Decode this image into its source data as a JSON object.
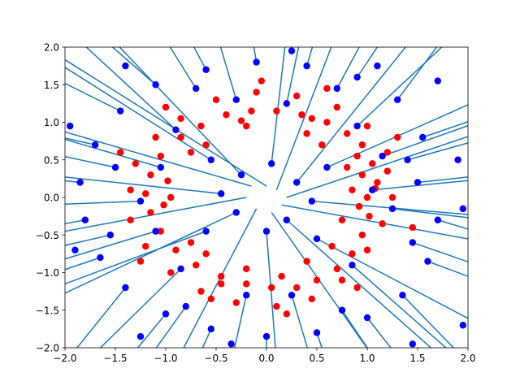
{
  "chart_data": {
    "type": "scatter",
    "title": "",
    "xlabel": "",
    "ylabel": "",
    "xlim": [
      -2.0,
      2.0
    ],
    "ylim": [
      -2.0,
      2.0
    ],
    "x_ticks": [
      "−2.0",
      "−1.5",
      "−1.0",
      "−0.5",
      "0.0",
      "0.5",
      "1.0",
      "1.5",
      "2.0"
    ],
    "y_ticks": [
      "−2.0",
      "−1.5",
      "−1.0",
      "−0.5",
      "0.0",
      "0.5",
      "1.0",
      "1.5",
      "2.0"
    ],
    "grid": false,
    "legend": "none",
    "colors": {
      "class_a": "#ff0000",
      "class_b": "#0000ff",
      "segments": "#1f77b4"
    },
    "series": [
      {
        "description": "inner ring points (red)",
        "color": "#ff0000",
        "points": [
          [
            0.95,
            0.3
          ],
          [
            1.05,
            0.45
          ],
          [
            1.1,
            0.2
          ],
          [
            0.9,
            0.55
          ],
          [
            1.0,
            0.0
          ],
          [
            1.02,
            -0.25
          ],
          [
            0.95,
            -0.5
          ],
          [
            0.85,
            -0.75
          ],
          [
            0.7,
            -0.95
          ],
          [
            0.5,
            -1.1
          ],
          [
            0.3,
            -1.2
          ],
          [
            0.05,
            -1.2
          ],
          [
            -0.2,
            -1.15
          ],
          [
            -0.45,
            -1.05
          ],
          [
            -0.7,
            -0.9
          ],
          [
            -0.9,
            -0.7
          ],
          [
            -1.05,
            -0.45
          ],
          [
            -1.15,
            -0.2
          ],
          [
            -1.2,
            0.05
          ],
          [
            -1.15,
            0.3
          ],
          [
            -1.05,
            0.55
          ],
          [
            -0.85,
            0.8
          ],
          [
            -0.65,
            0.95
          ],
          [
            -0.4,
            1.1
          ],
          [
            -0.15,
            1.15
          ],
          [
            0.1,
            1.15
          ],
          [
            0.35,
            1.1
          ],
          [
            0.6,
            1.0
          ],
          [
            0.8,
            0.85
          ],
          [
            0.95,
            0.7
          ],
          [
            1.2,
            0.35
          ],
          [
            1.25,
            0.0
          ],
          [
            1.15,
            -0.35
          ],
          [
            1.0,
            -0.7
          ],
          [
            0.75,
            -1.1
          ],
          [
            0.45,
            -1.35
          ],
          [
            0.1,
            -1.45
          ],
          [
            -0.3,
            -1.4
          ],
          [
            -0.65,
            -1.25
          ],
          [
            -0.95,
            -1.0
          ],
          [
            -1.2,
            -0.65
          ],
          [
            -1.35,
            -0.3
          ],
          [
            -1.35,
            0.1
          ],
          [
            -1.3,
            0.45
          ],
          [
            -1.1,
            0.8
          ],
          [
            -0.85,
            1.05
          ],
          [
            -0.5,
            1.3
          ],
          [
            -0.1,
            1.4
          ],
          [
            0.3,
            1.35
          ],
          [
            0.7,
            1.2
          ],
          [
            1.0,
            0.95
          ],
          [
            1.2,
            0.6
          ],
          [
            0.8,
            0.4
          ],
          [
            0.75,
            -0.3
          ],
          [
            0.4,
            -0.85
          ],
          [
            -0.2,
            -0.95
          ],
          [
            -0.75,
            -0.6
          ],
          [
            -0.95,
            0.0
          ],
          [
            -0.75,
            0.6
          ],
          [
            -0.2,
            0.95
          ],
          [
            0.4,
            0.85
          ],
          [
            0.85,
            0.1
          ],
          [
            -0.55,
            -1.35
          ],
          [
            0.6,
            1.45
          ],
          [
            -1.45,
            0.6
          ],
          [
            1.45,
            -0.4
          ],
          [
            0.2,
            -1.55
          ],
          [
            -1.0,
            1.2
          ],
          [
            1.3,
            0.8
          ],
          [
            -1.25,
            -0.85
          ],
          [
            0.9,
            -1.2
          ],
          [
            -0.05,
            1.55
          ],
          [
            0.55,
            0.7
          ],
          [
            -0.6,
            0.7
          ],
          [
            0.65,
            -0.65
          ],
          [
            -0.6,
            -0.75
          ],
          [
            1.08,
            0.12
          ],
          [
            0.92,
            -0.12
          ],
          [
            -1.02,
            -0.1
          ],
          [
            -0.98,
            0.22
          ],
          [
            0.15,
            -1.05
          ],
          [
            -0.25,
            1.02
          ],
          [
            0.45,
            1.05
          ],
          [
            -0.45,
            -1.15
          ]
        ]
      },
      {
        "description": "outer points (blue)",
        "color": "#0000ff",
        "points": [
          [
            1.5,
            0.2
          ],
          [
            1.7,
            -0.3
          ],
          [
            1.55,
            0.8
          ],
          [
            1.3,
            1.3
          ],
          [
            0.9,
            1.6
          ],
          [
            0.4,
            1.75
          ],
          [
            -0.1,
            1.8
          ],
          [
            -0.6,
            1.7
          ],
          [
            -1.1,
            1.5
          ],
          [
            -1.45,
            1.15
          ],
          [
            -1.7,
            0.7
          ],
          [
            -1.85,
            0.2
          ],
          [
            -1.8,
            -0.3
          ],
          [
            -1.65,
            -0.8
          ],
          [
            -1.4,
            -1.2
          ],
          [
            -1.0,
            -1.55
          ],
          [
            -0.55,
            -1.75
          ],
          [
            0.0,
            -1.85
          ],
          [
            0.5,
            -1.8
          ],
          [
            1.0,
            -1.6
          ],
          [
            1.35,
            -1.3
          ],
          [
            1.6,
            -0.85
          ],
          [
            0.3,
            0.2
          ],
          [
            -0.25,
            0.3
          ],
          [
            0.2,
            -0.3
          ],
          [
            -0.3,
            -0.2
          ],
          [
            0.05,
            0.45
          ],
          [
            0.45,
            -0.05
          ],
          [
            -0.45,
            0.05
          ],
          [
            0.0,
            -0.45
          ],
          [
            0.6,
            0.4
          ],
          [
            -0.55,
            0.5
          ],
          [
            0.5,
            -0.55
          ],
          [
            -0.6,
            -0.45
          ],
          [
            1.4,
            0.5
          ],
          [
            1.45,
            -0.6
          ],
          [
            -1.5,
            0.4
          ],
          [
            -1.55,
            -0.5
          ],
          [
            0.7,
            1.45
          ],
          [
            -0.7,
            1.45
          ],
          [
            0.75,
            -1.5
          ],
          [
            -0.8,
            -1.45
          ],
          [
            1.9,
            0.5
          ],
          [
            1.95,
            -0.15
          ],
          [
            -1.95,
            0.95
          ],
          [
            -1.9,
            -0.7
          ],
          [
            1.7,
            1.55
          ],
          [
            -1.4,
            1.75
          ],
          [
            1.45,
            -1.95
          ],
          [
            -1.25,
            -1.85
          ],
          [
            0.25,
            1.95
          ],
          [
            1.1,
            1.75
          ],
          [
            -0.35,
            -1.95
          ],
          [
            1.95,
            -1.7
          ],
          [
            1.05,
            0.1
          ],
          [
            1.25,
            -0.15
          ],
          [
            1.15,
            0.55
          ],
          [
            -1.05,
            0.4
          ],
          [
            -1.25,
            -0.05
          ],
          [
            -1.1,
            -0.45
          ],
          [
            0.2,
            1.25
          ],
          [
            -0.3,
            1.3
          ],
          [
            0.25,
            -1.3
          ],
          [
            -0.2,
            -1.3
          ],
          [
            0.85,
            -0.9
          ],
          [
            -0.85,
            -0.95
          ],
          [
            0.9,
            0.95
          ],
          [
            -0.9,
            0.9
          ]
        ]
      }
    ],
    "segments": {
      "description": "lines from each outer point radiating outward",
      "color": "#1f77b4",
      "lines": [
        [
          0.0,
          0.15,
          -2.2,
          2.0
        ],
        [
          0.1,
          0.1,
          0.7,
          2.2
        ],
        [
          0.2,
          0.0,
          2.2,
          0.9
        ],
        [
          0.15,
          -0.1,
          2.2,
          -0.6
        ],
        [
          0.05,
          -0.2,
          1.1,
          -2.2
        ],
        [
          -0.1,
          -0.15,
          -0.9,
          -2.2
        ],
        [
          -0.2,
          0.0,
          -2.2,
          -0.5
        ],
        [
          -0.15,
          0.15,
          -2.2,
          0.95
        ],
        [
          0.3,
          0.2,
          1.5,
          2.2
        ],
        [
          -0.25,
          0.3,
          -1.6,
          2.2
        ],
        [
          0.2,
          -0.3,
          1.8,
          -2.2
        ],
        [
          -0.3,
          -0.2,
          -2.2,
          -1.4
        ],
        [
          0.05,
          0.45,
          0.2,
          2.2
        ],
        [
          0.45,
          -0.05,
          2.2,
          -0.25
        ],
        [
          -0.45,
          0.05,
          -2.2,
          0.3
        ],
        [
          0.0,
          -0.45,
          0.1,
          -2.2
        ],
        [
          0.6,
          0.4,
          2.2,
          1.35
        ],
        [
          -0.55,
          0.5,
          -2.2,
          1.9
        ],
        [
          0.5,
          -0.55,
          2.2,
          -1.75
        ],
        [
          -0.6,
          -0.45,
          -2.2,
          -1.25
        ],
        [
          1.5,
          0.2,
          2.2,
          0.3
        ],
        [
          1.7,
          -0.3,
          2.2,
          -0.5
        ],
        [
          1.55,
          0.8,
          2.2,
          1.1
        ],
        [
          1.3,
          1.3,
          1.8,
          2.2
        ],
        [
          0.9,
          1.6,
          1.2,
          2.2
        ],
        [
          0.4,
          1.75,
          0.5,
          2.2
        ],
        [
          -0.1,
          1.8,
          -0.15,
          2.2
        ],
        [
          -0.6,
          1.7,
          -0.8,
          2.2
        ],
        [
          -1.1,
          1.5,
          -1.7,
          2.2
        ],
        [
          -1.45,
          1.15,
          -2.2,
          1.65
        ],
        [
          -1.7,
          0.7,
          -2.2,
          0.85
        ],
        [
          -1.85,
          0.2,
          -2.2,
          0.25
        ],
        [
          -1.8,
          -0.3,
          -2.2,
          -0.4
        ],
        [
          -1.65,
          -0.8,
          -2.2,
          -1.05
        ],
        [
          -1.4,
          -1.2,
          -2.0,
          -2.2
        ],
        [
          -1.0,
          -1.55,
          -1.4,
          -2.2
        ],
        [
          -0.55,
          -1.75,
          -0.7,
          -2.2
        ],
        [
          0.0,
          -1.85,
          0.0,
          -2.2
        ],
        [
          0.5,
          -1.8,
          0.6,
          -2.2
        ],
        [
          1.0,
          -1.6,
          1.35,
          -2.2
        ],
        [
          1.35,
          -1.3,
          2.0,
          -2.2
        ],
        [
          1.6,
          -0.85,
          2.2,
          -1.15
        ],
        [
          1.4,
          0.5,
          2.2,
          0.8
        ],
        [
          1.45,
          -0.6,
          2.2,
          -0.95
        ],
        [
          -1.5,
          0.4,
          -2.2,
          0.6
        ],
        [
          -1.55,
          -0.5,
          -2.2,
          -0.7
        ],
        [
          0.7,
          1.45,
          1.0,
          2.2
        ],
        [
          -0.7,
          1.45,
          -1.05,
          2.2
        ],
        [
          0.75,
          -1.5,
          1.1,
          -2.2
        ],
        [
          -0.8,
          -1.45,
          -1.2,
          -2.2
        ],
        [
          1.05,
          0.1,
          2.2,
          0.25
        ],
        [
          1.25,
          -0.15,
          2.2,
          -0.3
        ],
        [
          1.15,
          0.55,
          2.2,
          1.05
        ],
        [
          -1.05,
          0.4,
          -2.2,
          0.85
        ],
        [
          -1.25,
          -0.05,
          -2.2,
          -0.1
        ],
        [
          -1.1,
          -0.45,
          -2.2,
          -0.9
        ],
        [
          0.2,
          1.25,
          0.35,
          2.2
        ],
        [
          -0.3,
          1.3,
          -0.5,
          2.2
        ],
        [
          0.25,
          -1.3,
          0.45,
          -2.2
        ],
        [
          -0.2,
          -1.3,
          -0.35,
          -2.2
        ],
        [
          0.85,
          -0.9,
          1.95,
          -2.2
        ],
        [
          -0.85,
          -0.95,
          -1.8,
          -2.2
        ],
        [
          0.9,
          0.95,
          1.9,
          2.2
        ],
        [
          -0.9,
          0.9,
          -1.95,
          2.2
        ]
      ]
    }
  }
}
